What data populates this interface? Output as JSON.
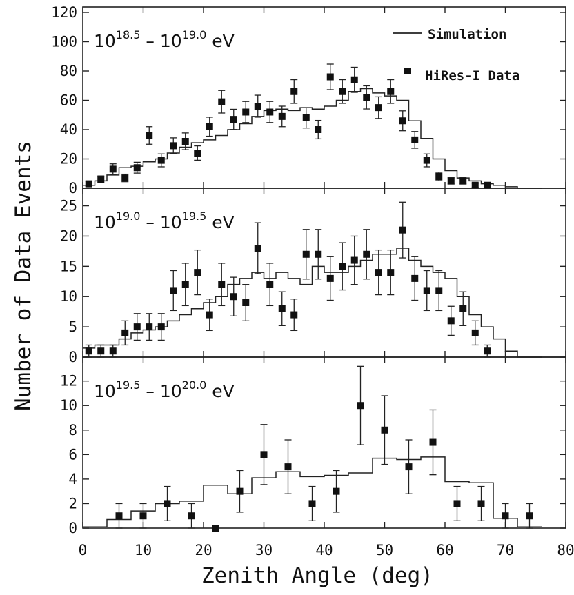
{
  "chart_data": {
    "type": "histogram-with-error-bars",
    "xlabel": "Zenith Angle (deg)",
    "ylabel": "Number of Data Events",
    "xlim": [
      0,
      80
    ],
    "xticks": [
      0,
      10,
      20,
      30,
      40,
      50,
      60,
      70,
      80
    ],
    "legend": {
      "simulation": "Simulation",
      "data": "HiRes-I Data",
      "position": "top-right"
    },
    "panels": [
      {
        "range": {
          "a_base": "10",
          "a_exp": "18.5",
          "b_base": "10",
          "b_exp": "19.0",
          "unit": "eV"
        },
        "ylim": [
          0,
          120
        ],
        "yticks": [
          0,
          20,
          40,
          60,
          80,
          100,
          120
        ],
        "simulation_edges": [
          0,
          2,
          4,
          6,
          8,
          10,
          12,
          14,
          16,
          18,
          20,
          22,
          24,
          26,
          28,
          30,
          32,
          34,
          36,
          38,
          40,
          42,
          44,
          46,
          48,
          50,
          52,
          54,
          56,
          58,
          60,
          62,
          64,
          66,
          68,
          70,
          72,
          74,
          76
        ],
        "simulation_values": [
          2,
          5,
          9,
          14,
          15,
          18,
          20,
          24,
          28,
          31,
          33,
          36,
          40,
          44,
          49,
          53,
          54,
          53,
          55,
          54,
          56,
          60,
          66,
          68,
          65,
          63,
          60,
          46,
          34,
          20,
          12,
          7,
          5,
          3,
          2,
          1,
          0,
          0
        ],
        "data": {
          "x": [
            1,
            3,
            5,
            7,
            9,
            11,
            13,
            15,
            17,
            19,
            21,
            23,
            25,
            27,
            29,
            31,
            33,
            35,
            37,
            39,
            41,
            43,
            45,
            47,
            49,
            51,
            53,
            55,
            57,
            59,
            61,
            63,
            65,
            67
          ],
          "y": [
            3,
            6,
            13,
            7,
            14,
            36,
            19,
            29,
            32,
            24,
            42,
            59,
            47,
            52,
            56,
            52,
            49,
            66,
            48,
            40,
            76,
            66,
            74,
            62,
            55,
            66,
            46,
            33,
            19,
            8,
            5,
            5,
            2,
            2
          ],
          "err": [
            1.7,
            2.4,
            3.6,
            2.6,
            3.7,
            6,
            4.4,
            5.4,
            5.7,
            4.9,
            6.5,
            7.7,
            6.9,
            7.2,
            7.5,
            7.2,
            7,
            8.1,
            6.9,
            6.3,
            8.7,
            8.1,
            8.6,
            7.9,
            7.4,
            8.1,
            6.8,
            5.7,
            4.4,
            2.8,
            2.2,
            2.2,
            1.4,
            1.4
          ]
        }
      },
      {
        "range": {
          "a_base": "10",
          "a_exp": "19.0",
          "b_base": "10",
          "b_exp": "19.5",
          "unit": "eV"
        },
        "ylim": [
          0,
          27
        ],
        "yticks": [
          0,
          5,
          10,
          15,
          20,
          25
        ],
        "simulation_edges": [
          0,
          2,
          4,
          6,
          8,
          10,
          12,
          14,
          16,
          18,
          20,
          22,
          24,
          26,
          28,
          30,
          32,
          34,
          36,
          38,
          40,
          42,
          44,
          46,
          48,
          50,
          52,
          54,
          56,
          58,
          60,
          62,
          64,
          66,
          68,
          70,
          72,
          74,
          76
        ],
        "simulation_values": [
          1.5,
          2,
          2,
          3,
          4,
          4.5,
          5,
          6,
          7,
          8,
          9,
          10,
          12,
          13,
          14,
          13,
          14,
          13,
          12,
          15,
          14,
          14,
          15,
          16,
          17,
          17,
          18,
          16,
          15,
          14,
          13,
          10,
          7,
          5,
          3,
          1,
          0,
          0
        ],
        "data": {
          "x": [
            1,
            3,
            5,
            7,
            9,
            11,
            13,
            15,
            17,
            19,
            21,
            23,
            25,
            27,
            29,
            31,
            33,
            35,
            37,
            39,
            41,
            43,
            45,
            47,
            49,
            51,
            53,
            55,
            57,
            59,
            61,
            63,
            65,
            67
          ],
          "y": [
            1,
            1,
            1,
            4,
            5,
            5,
            5,
            11,
            12,
            14,
            7,
            12,
            10,
            9,
            18,
            12,
            8,
            7,
            17,
            17,
            13,
            15,
            16,
            17,
            14,
            14,
            21,
            13,
            11,
            11,
            6,
            8,
            4,
            1
          ],
          "err": [
            1,
            1,
            1,
            2,
            2.2,
            2.2,
            2.2,
            3.3,
            3.5,
            3.7,
            2.6,
            3.5,
            3.2,
            3,
            4.2,
            3.5,
            2.8,
            2.6,
            4.1,
            4.1,
            3.6,
            3.9,
            4,
            4.1,
            3.7,
            3.7,
            4.6,
            3.6,
            3.3,
            3.3,
            2.4,
            2.8,
            2,
            1
          ]
        }
      },
      {
        "range": {
          "a_base": "10",
          "a_exp": "19.5",
          "b_base": "10",
          "b_exp": "20.0",
          "unit": "eV"
        },
        "ylim": [
          0,
          13.5
        ],
        "yticks": [
          0,
          2,
          4,
          6,
          8,
          10,
          12
        ],
        "simulation_edges": [
          0,
          4,
          8,
          12,
          16,
          20,
          24,
          28,
          32,
          36,
          40,
          44,
          48,
          52,
          56,
          60,
          64,
          68,
          72,
          76
        ],
        "simulation_values": [
          0.1,
          0.7,
          1.4,
          2.0,
          2.2,
          3.5,
          2.8,
          4.1,
          4.6,
          4.2,
          4.3,
          4.5,
          5.7,
          5.6,
          5.8,
          3.8,
          3.7,
          0.8,
          0.1
        ],
        "data": {
          "x": [
            6,
            10,
            14,
            18,
            22,
            26,
            30,
            34,
            38,
            42,
            46,
            50,
            54,
            58,
            62,
            66,
            70,
            74
          ],
          "y": [
            1,
            1,
            2,
            1,
            0,
            3,
            6,
            5,
            2,
            3,
            10,
            8,
            5,
            7,
            2,
            2,
            1,
            1
          ],
          "err": [
            1,
            1,
            1.4,
            1,
            0,
            1.7,
            2.45,
            2.2,
            1.4,
            1.7,
            3.2,
            2.8,
            2.2,
            2.65,
            1.4,
            1.4,
            1,
            1
          ]
        }
      }
    ]
  }
}
